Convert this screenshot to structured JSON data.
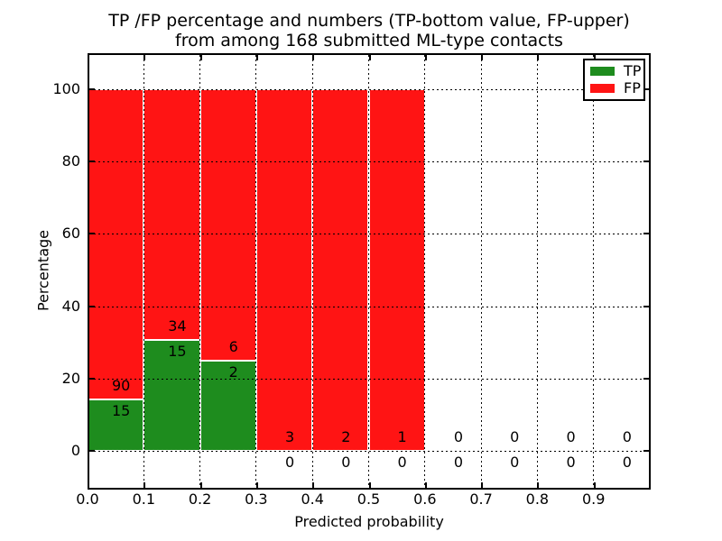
{
  "figure": {
    "kind": "matplotlib-style statistics plot",
    "background": "#ffffff",
    "text_color": "#000000"
  },
  "chart_data": {
    "type": "bar",
    "subtype": "stacked-percentage-histogram",
    "title_line1": "TP /FP percentage and numbers (TP-bottom value, FP-upper)",
    "title_line2": "from among 168 submitted ML-type contacts",
    "xlabel": "Predicted probability",
    "ylabel": "Percentage",
    "total_contacts": 168,
    "bin_width": 0.1,
    "bin_starts": [
      0.0,
      0.1,
      0.2,
      0.3,
      0.4,
      0.5,
      0.6,
      0.7,
      0.8,
      0.9
    ],
    "series": [
      {
        "name": "TP",
        "color": "#1e8c1e",
        "counts": [
          15,
          15,
          2,
          0,
          0,
          0,
          0,
          0,
          0,
          0
        ]
      },
      {
        "name": "FP",
        "color": "#ff1414",
        "counts": [
          90,
          34,
          6,
          3,
          2,
          1,
          0,
          0,
          0,
          0
        ]
      }
    ],
    "tp_percent_of_bin": [
      14.29,
      30.61,
      25.0,
      0,
      0,
      0,
      0,
      0,
      0,
      0
    ],
    "bar_total_percent": [
      100,
      100,
      100,
      100,
      100,
      100,
      0,
      0,
      0,
      0
    ],
    "x_ticks": [
      "0.0",
      "0.1",
      "0.2",
      "0.3",
      "0.4",
      "0.5",
      "0.6",
      "0.7",
      "0.8",
      "0.9"
    ],
    "y_ticks": [
      0,
      20,
      40,
      60,
      80,
      100
    ],
    "xlim": [
      0.0,
      1.0
    ],
    "ylim": [
      -10.5,
      110
    ],
    "grid": "dotted",
    "grid_color": "#000000",
    "legend_position": "upper right"
  },
  "legend": {
    "items": [
      {
        "label": "TP",
        "color": "#1e8c1e"
      },
      {
        "label": "FP",
        "color": "#ff1414"
      }
    ]
  }
}
